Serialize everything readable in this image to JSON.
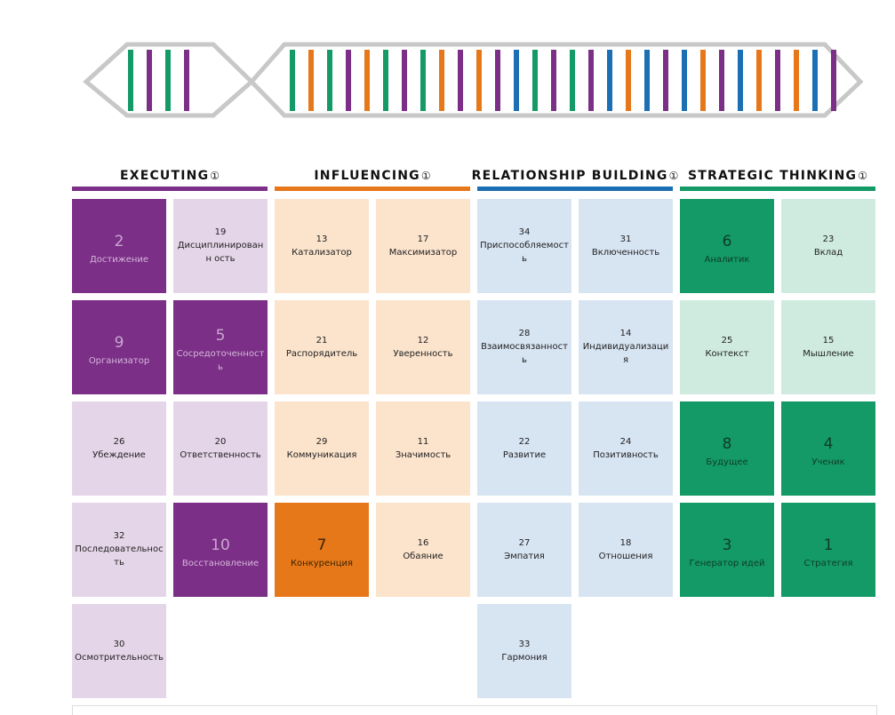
{
  "colors": {
    "executing": "#7b2f87",
    "executing_light": "#e5d5e8",
    "influencing": "#e7781a",
    "influencing_light": "#fbe3cc",
    "relationship": "#1b6fb5",
    "relationship_light": "#d7e4f2",
    "strategic": "#149a66",
    "strategic_light": "#cfebe0",
    "dna_outline": "#c8c8c8"
  },
  "dna": {
    "strand1": [
      "green",
      "purple",
      "green",
      "purple"
    ],
    "strand2": [
      "green",
      "orange",
      "green",
      "purple",
      "orange",
      "green",
      "purple",
      "green",
      "orange",
      "purple",
      "orange",
      "purple",
      "blue",
      "green",
      "purple",
      "green",
      "purple",
      "blue",
      "orange",
      "blue",
      "purple",
      "blue",
      "orange",
      "purple",
      "blue",
      "orange",
      "purple",
      "orange",
      "blue",
      "purple"
    ]
  },
  "columns": [
    {
      "key": "executing",
      "title": "EXECUTING",
      "info_icon": "①",
      "tiles": [
        {
          "rank": "2",
          "name": "Достижение",
          "strong": true
        },
        {
          "rank": "19",
          "name": "Дисциплинированн ость",
          "strong": false
        },
        {
          "rank": "9",
          "name": "Организатор",
          "strong": true
        },
        {
          "rank": "5",
          "name": "Сосредоточенность",
          "strong": true
        },
        {
          "rank": "26",
          "name": "Убеждение",
          "strong": false
        },
        {
          "rank": "20",
          "name": "Ответственность",
          "strong": false
        },
        {
          "rank": "32",
          "name": "Последовательность",
          "strong": false
        },
        {
          "rank": "10",
          "name": "Восстановление",
          "strong": true
        },
        {
          "rank": "30",
          "name": "Осмотрительность",
          "strong": false
        }
      ]
    },
    {
      "key": "influencing",
      "title": "INFLUENCING",
      "info_icon": "①",
      "tiles": [
        {
          "rank": "13",
          "name": "Катализатор",
          "strong": false
        },
        {
          "rank": "17",
          "name": "Максимизатор",
          "strong": false
        },
        {
          "rank": "21",
          "name": "Распорядитель",
          "strong": false
        },
        {
          "rank": "12",
          "name": "Уверенность",
          "strong": false
        },
        {
          "rank": "29",
          "name": "Коммуникация",
          "strong": false
        },
        {
          "rank": "11",
          "name": "Значимость",
          "strong": false
        },
        {
          "rank": "7",
          "name": "Конкуренция",
          "strong": true
        },
        {
          "rank": "16",
          "name": "Обаяние",
          "strong": false
        }
      ]
    },
    {
      "key": "relationship",
      "title": "RELATIONSHIP BUILDING",
      "info_icon": "①",
      "tiles": [
        {
          "rank": "34",
          "name": "Приспособляемость",
          "strong": false
        },
        {
          "rank": "31",
          "name": "Включенность",
          "strong": false
        },
        {
          "rank": "28",
          "name": "Взаимосвязанность",
          "strong": false
        },
        {
          "rank": "14",
          "name": "Индивидуализация",
          "strong": false
        },
        {
          "rank": "22",
          "name": "Развитие",
          "strong": false
        },
        {
          "rank": "24",
          "name": "Позитивность",
          "strong": false
        },
        {
          "rank": "27",
          "name": "Эмпатия",
          "strong": false
        },
        {
          "rank": "18",
          "name": "Отношения",
          "strong": false
        },
        {
          "rank": "33",
          "name": "Гармония",
          "strong": false
        }
      ]
    },
    {
      "key": "strategic",
      "title": "STRATEGIC THINKING",
      "info_icon": "①",
      "tiles": [
        {
          "rank": "6",
          "name": "Аналитик",
          "strong": true
        },
        {
          "rank": "23",
          "name": "Вклад",
          "strong": false
        },
        {
          "rank": "25",
          "name": "Контекст",
          "strong": false
        },
        {
          "rank": "15",
          "name": "Мышление",
          "strong": false
        },
        {
          "rank": "8",
          "name": "Будущее",
          "strong": true
        },
        {
          "rank": "4",
          "name": "Ученик",
          "strong": true
        },
        {
          "rank": "3",
          "name": "Генератор идей",
          "strong": true
        },
        {
          "rank": "1",
          "name": "Стратегия",
          "strong": true
        }
      ]
    }
  ]
}
